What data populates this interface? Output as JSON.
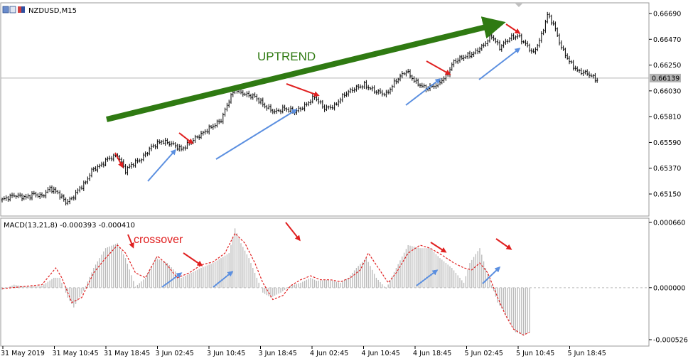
{
  "window": {
    "symbol_label": "NZDUSD,M15"
  },
  "chart_data": [
    {
      "type": "candlestick",
      "title": "NZDUSD,M15",
      "ylim": [
        0.65,
        0.6672
      ],
      "y_ticks": [
        "0.66690",
        "0.66470",
        "0.66250",
        "0.66030",
        "0.65810",
        "0.65590",
        "0.65370",
        "0.65150"
      ],
      "current_price": "0.66139",
      "close_path": [
        [
          0,
          0.651
        ],
        [
          6,
          0.6514
        ],
        [
          12,
          0.6512
        ],
        [
          16,
          0.6515
        ],
        [
          20,
          0.6513
        ],
        [
          24,
          0.652
        ],
        [
          28,
          0.6516
        ],
        [
          32,
          0.6508
        ],
        [
          35,
          0.6511
        ],
        [
          38,
          0.6518
        ],
        [
          42,
          0.6525
        ],
        [
          45,
          0.6535
        ],
        [
          50,
          0.654
        ],
        [
          53,
          0.6545
        ],
        [
          58,
          0.6548
        ],
        [
          62,
          0.6535
        ],
        [
          65,
          0.654
        ],
        [
          70,
          0.6545
        ],
        [
          75,
          0.6555
        ],
        [
          80,
          0.656
        ],
        [
          85,
          0.6558
        ],
        [
          90,
          0.6553
        ],
        [
          95,
          0.656
        ],
        [
          100,
          0.6566
        ],
        [
          105,
          0.6572
        ],
        [
          110,
          0.6578
        ],
        [
          114,
          0.6595
        ],
        [
          117,
          0.6605
        ],
        [
          122,
          0.66
        ],
        [
          127,
          0.6598
        ],
        [
          132,
          0.659
        ],
        [
          137,
          0.6585
        ],
        [
          142,
          0.6588
        ],
        [
          147,
          0.6585
        ],
        [
          152,
          0.659
        ],
        [
          157,
          0.6598
        ],
        [
          162,
          0.6588
        ],
        [
          167,
          0.659
        ],
        [
          172,
          0.66
        ],
        [
          177,
          0.6605
        ],
        [
          182,
          0.6608
        ],
        [
          187,
          0.6603
        ],
        [
          193,
          0.66
        ],
        [
          198,
          0.6612
        ],
        [
          203,
          0.662
        ],
        [
          208,
          0.661
        ],
        [
          213,
          0.6605
        ],
        [
          218,
          0.6608
        ],
        [
          223,
          0.6615
        ],
        [
          227,
          0.6628
        ],
        [
          232,
          0.6632
        ],
        [
          237,
          0.6635
        ],
        [
          242,
          0.6642
        ],
        [
          246,
          0.665
        ],
        [
          250,
          0.664
        ],
        [
          255,
          0.6648
        ],
        [
          259,
          0.665
        ],
        [
          263,
          0.6643
        ],
        [
          267,
          0.6635
        ],
        [
          271,
          0.665
        ],
        [
          274,
          0.6668
        ],
        [
          277,
          0.666
        ],
        [
          281,
          0.664
        ],
        [
          285,
          0.6628
        ],
        [
          289,
          0.662
        ],
        [
          294,
          0.6618
        ],
        [
          299,
          0.6612
        ]
      ]
    },
    {
      "type": "bar+line",
      "title": "MACD(13,21,8) -0.000393 -0.000410",
      "ylim": [
        -0.000526,
        0.00066
      ],
      "y_ticks": [
        "0.000660",
        "0.000000",
        "-0.000526"
      ],
      "series": [
        {
          "kind": "histogram",
          "path": [
            [
              0,
              -2e-05
            ],
            [
              6,
              3e-05
            ],
            [
              12,
              1e-05
            ],
            [
              20,
              2e-05
            ],
            [
              26,
              0.0001
            ],
            [
              29,
              0.0001
            ],
            [
              33,
              -0.0001
            ],
            [
              36,
              -0.0002
            ],
            [
              41,
              -3e-05
            ],
            [
              46,
              0.0002
            ],
            [
              52,
              0.0004
            ],
            [
              58,
              0.00045
            ],
            [
              62,
              0.0003
            ],
            [
              67,
              1e-05
            ],
            [
              72,
              0.0001
            ],
            [
              77,
              0.0003
            ],
            [
              83,
              0.00025
            ],
            [
              90,
              0.0001
            ],
            [
              95,
              0.00015
            ],
            [
              100,
              0.0002
            ],
            [
              106,
              0.00025
            ],
            [
              110,
              0.0003
            ],
            [
              114,
              0.00035
            ],
            [
              117,
              0.0006
            ],
            [
              120,
              0.00045
            ],
            [
              124,
              0.0003
            ],
            [
              127,
              0.00015
            ],
            [
              131,
              -5e-05
            ],
            [
              135,
              -0.0001
            ],
            [
              140,
              -5e-05
            ],
            [
              145,
              2e-05
            ],
            [
              150,
              5e-05
            ],
            [
              155,
              0.0001
            ],
            [
              158,
              7e-05
            ],
            [
              164,
              8e-05
            ],
            [
              170,
              5e-05
            ],
            [
              174,
              0.0001
            ],
            [
              178,
              0.0002
            ],
            [
              183,
              0.0003
            ],
            [
              188,
              0.0001
            ],
            [
              193,
              -1e-05
            ],
            [
              198,
              0.0002
            ],
            [
              204,
              0.00043
            ],
            [
              210,
              0.0004
            ],
            [
              215,
              0.0004
            ],
            [
              220,
              0.0003
            ],
            [
              226,
              0.0002
            ],
            [
              232,
              5e-05
            ],
            [
              235,
              0.00025
            ],
            [
              240,
              0.0004
            ],
            [
              243,
              0.0002
            ],
            [
              249,
              -0.00015
            ],
            [
              254,
              -0.0003
            ],
            [
              258,
              -0.00045
            ],
            [
              262,
              -0.00048
            ],
            [
              265,
              -0.00045
            ]
          ]
        },
        {
          "kind": "signal",
          "path": [
            [
              0,
              -1e-05
            ],
            [
              10,
              1e-05
            ],
            [
              20,
              3e-05
            ],
            [
              27,
              0.0002
            ],
            [
              30,
              0.0001
            ],
            [
              35,
              -0.00015
            ],
            [
              40,
              -0.0001
            ],
            [
              46,
              0.00015
            ],
            [
              52,
              0.0003
            ],
            [
              58,
              0.00043
            ],
            [
              62,
              0.00035
            ],
            [
              67,
              0.00015
            ],
            [
              72,
              0.0001
            ],
            [
              78,
              0.00032
            ],
            [
              82,
              0.00025
            ],
            [
              88,
              0.0001
            ],
            [
              94,
              0.00015
            ],
            [
              100,
              0.00023
            ],
            [
              106,
              0.00026
            ],
            [
              112,
              0.00035
            ],
            [
              117,
              0.00055
            ],
            [
              122,
              0.00045
            ],
            [
              127,
              0.00025
            ],
            [
              131,
              5e-05
            ],
            [
              136,
              -0.00012
            ],
            [
              141,
              -8e-05
            ],
            [
              145,
              2e-05
            ],
            [
              150,
              8e-05
            ],
            [
              155,
              0.00012
            ],
            [
              160,
              8e-05
            ],
            [
              165,
              8e-05
            ],
            [
              170,
              6e-05
            ],
            [
              175,
              0.0001
            ],
            [
              180,
              0.00018
            ],
            [
              184,
              0.00035
            ],
            [
              189,
              0.0002
            ],
            [
              194,
              5e-05
            ],
            [
              198,
              0.00015
            ],
            [
              204,
              0.00035
            ],
            [
              210,
              0.00043
            ],
            [
              215,
              0.0004
            ],
            [
              221,
              0.00033
            ],
            [
              227,
              0.00025
            ],
            [
              232,
              0.0002
            ],
            [
              236,
              0.00018
            ],
            [
              240,
              0.00025
            ],
            [
              244,
              0.00015
            ],
            [
              249,
              -0.0001
            ],
            [
              253,
              -0.00028
            ],
            [
              257,
              -0.00042
            ],
            [
              262,
              -0.00048
            ],
            [
              265,
              -0.00045
            ]
          ]
        }
      ],
      "annotation_text": "crossover"
    }
  ],
  "annotations": {
    "uptrend_label": "UPTREND",
    "colors": {
      "trend": "#2f7a12",
      "down_arrow": "#e02020",
      "up_arrow": "#5b8fe0",
      "signal": "#e02020",
      "histogram": "#b8b8b8"
    }
  },
  "time_axis": {
    "labels": [
      "31 May 2019",
      "31 May 10:45",
      "31 May 18:45",
      "3 Jun 02:45",
      "3 Jun 10:45",
      "3 Jun 18:45",
      "4 Jun 02:45",
      "4 Jun 10:45",
      "4 Jun 18:45",
      "5 Jun 02:45",
      "5 Jun 10:45",
      "5 Jun 18:45"
    ]
  }
}
